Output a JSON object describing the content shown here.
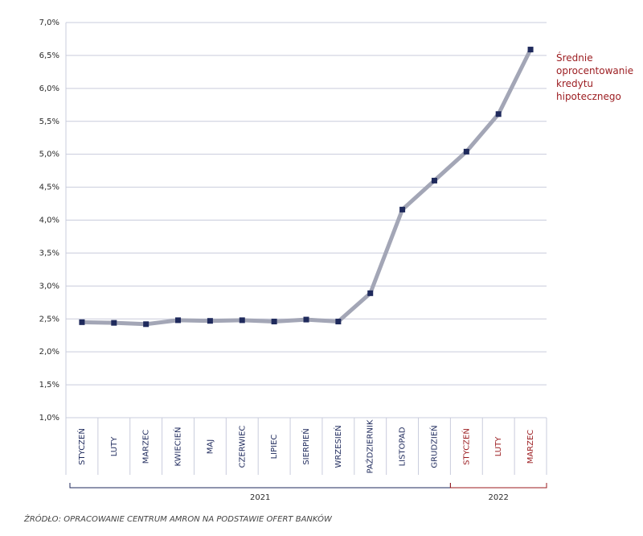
{
  "chart_data": {
    "type": "line",
    "categories": [
      "STYCZEŃ",
      "LUTY",
      "MARZEC",
      "KWIECIEŃ",
      "MAJ",
      "CZERWIEC",
      "LIPIEC",
      "SIERPIEŃ",
      "WRZESIEŃ",
      "PAŹDZIERNIK",
      "LISTOPAD",
      "GRUDZIEŃ",
      "STYCZEŃ",
      "LUTY",
      "MARZEC"
    ],
    "x_groups": [
      {
        "label": "2021",
        "span": 12,
        "color": "#1f2a5c"
      },
      {
        "label": "2022",
        "span": 3,
        "color": "#9b1b1f"
      }
    ],
    "series": [
      {
        "name": "Średnie oprocentowanie kredytu hipotecznego",
        "color": "#a3a6b6",
        "marker_color": "#1f2a5c",
        "values": [
          2.45,
          2.44,
          2.42,
          2.48,
          2.47,
          2.48,
          2.46,
          2.49,
          2.46,
          2.89,
          4.16,
          4.6,
          5.04,
          5.61,
          6.59
        ]
      }
    ],
    "ylim": [
      1.0,
      7.0
    ],
    "yticks": [
      {
        "value": 1.0,
        "label": "1,0%"
      },
      {
        "value": 1.5,
        "label": "1,5%"
      },
      {
        "value": 2.0,
        "label": "2,0%"
      },
      {
        "value": 2.5,
        "label": "2,5%"
      },
      {
        "value": 3.0,
        "label": "3,0%"
      },
      {
        "value": 3.5,
        "label": "3,5%"
      },
      {
        "value": 4.0,
        "label": "4,0%"
      },
      {
        "value": 4.5,
        "label": "4,5%"
      },
      {
        "value": 5.0,
        "label": "5,0%"
      },
      {
        "value": 5.5,
        "label": "5,5%"
      },
      {
        "value": 6.0,
        "label": "6,0%"
      },
      {
        "value": 6.5,
        "label": "6,5%"
      },
      {
        "value": 7.0,
        "label": "7,0%"
      }
    ],
    "grid": true,
    "source": "ŹRÓDŁO: OPRACOWANIE CENTRUM AMRON NA PODSTAWIE OFERT BANKÓW"
  }
}
